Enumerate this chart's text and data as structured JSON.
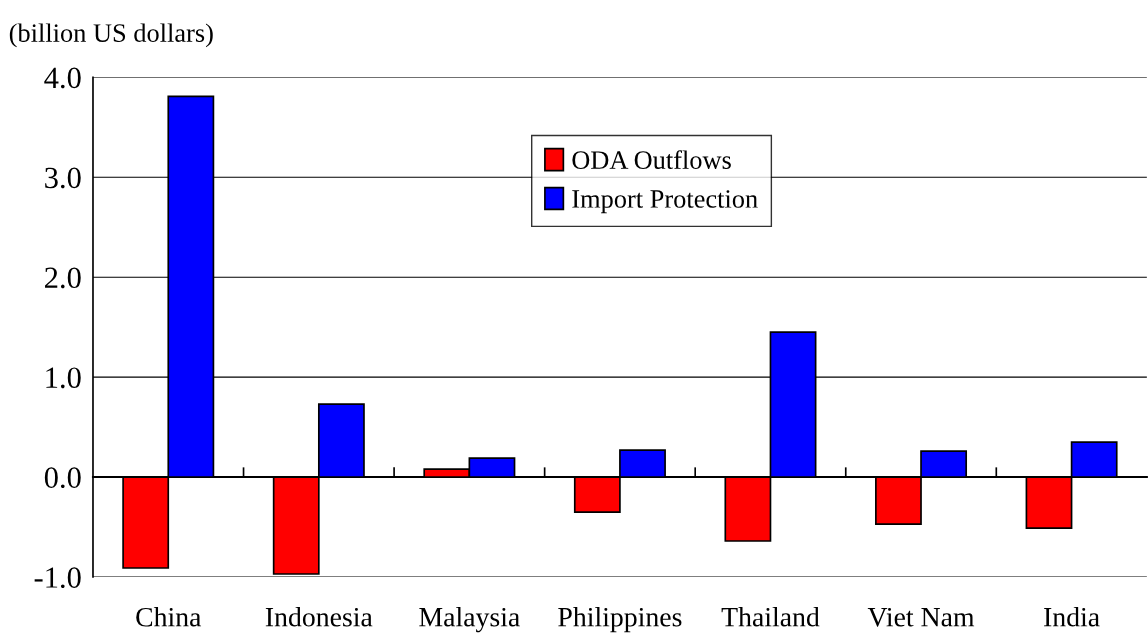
{
  "chart_data": {
    "type": "bar",
    "ylabel": "(billion US dollars)",
    "categories": [
      "China",
      "Indonesia",
      "Malaysia",
      "Philippines",
      "Thailand",
      "Viet Nam",
      "India"
    ],
    "series": [
      {
        "name": "ODA Outflows",
        "color": "#ff0000",
        "values": [
          -0.91,
          -0.97,
          0.08,
          -0.35,
          -0.64,
          -0.47,
          -0.51
        ]
      },
      {
        "name": "Import Protection",
        "color": "#0000ff",
        "values": [
          3.81,
          0.73,
          0.19,
          0.27,
          1.45,
          0.26,
          0.35
        ]
      }
    ],
    "ylim": [
      -1,
      4
    ],
    "yticks": [
      {
        "value": -1,
        "label": "-1.0"
      },
      {
        "value": 0,
        "label": "0.0"
      },
      {
        "value": 1,
        "label": "1.0"
      },
      {
        "value": 2,
        "label": "2.0"
      },
      {
        "value": 3,
        "label": "3.0"
      },
      {
        "value": 4,
        "label": "4.0"
      }
    ],
    "grid": "y",
    "legend": "top center"
  }
}
